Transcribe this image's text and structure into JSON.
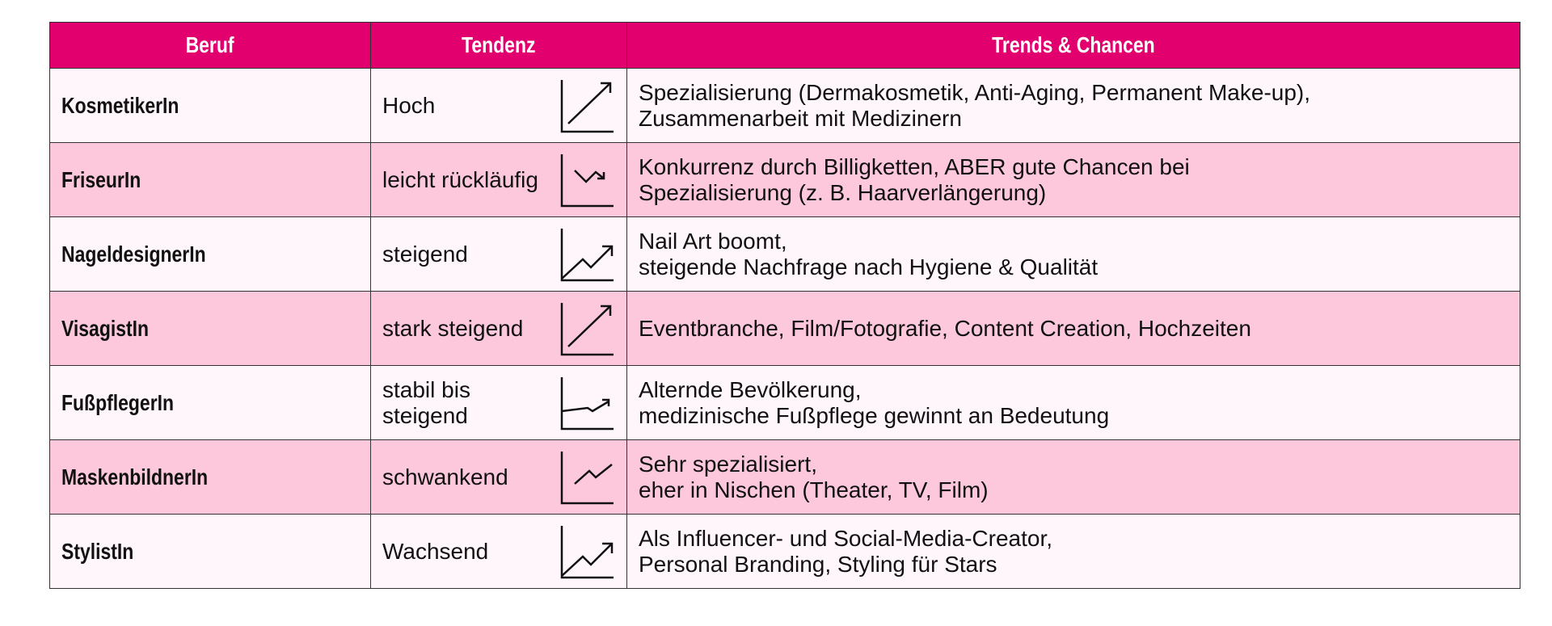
{
  "colors": {
    "header": "#e2006f",
    "row_light": "#fff6fb",
    "row_pink": "#fdc8db"
  },
  "headers": [
    "Beruf",
    "Tendenz",
    "Trends & Chancen"
  ],
  "rows": [
    {
      "beruf": "KosmetikerIn",
      "tendenz": "Hoch",
      "icon": "trend-steep-up-icon",
      "trends": "Spezialisierung (Dermakosmetik, Anti-Aging, Permanent Make-up),\nZusammenarbeit mit Medizinern"
    },
    {
      "beruf": "FriseurIn",
      "tendenz": "leicht rückläufig",
      "icon": "trend-slight-down-icon",
      "trends": "Konkurrenz durch Billigketten, ABER gute Chancen bei\nSpezialisierung (z. B. Haarverlängerung)"
    },
    {
      "beruf": "NageldesignerIn",
      "tendenz": "steigend",
      "icon": "trend-zigzag-up-icon",
      "trends": "Nail Art boomt,\nsteigende Nachfrage nach Hygiene & Qualität"
    },
    {
      "beruf": "VisagistIn",
      "tendenz": "stark steigend",
      "icon": "trend-steep-up-icon",
      "trends": "Eventbranche, Film/Fotografie, Content Creation, Hochzeiten"
    },
    {
      "beruf": "FußpflegerIn",
      "tendenz": "stabil bis steigend",
      "icon": "trend-flat-up-icon",
      "trends": "Alternde Bevölkerung,\nmedizinische Fußpflege gewinnt an Bedeutung"
    },
    {
      "beruf": "MaskenbildnerIn",
      "tendenz": "schwankend",
      "icon": "trend-fluctuating-icon",
      "trends": "Sehr spezialisiert,\neher in Nischen (Theater, TV, Film)"
    },
    {
      "beruf": "StylistIn",
      "tendenz": "Wachsend",
      "icon": "trend-zigzag-up-icon",
      "trends": "Als Influencer- und Social-Media-Creator,\nPersonal Branding, Styling für Stars"
    }
  ]
}
